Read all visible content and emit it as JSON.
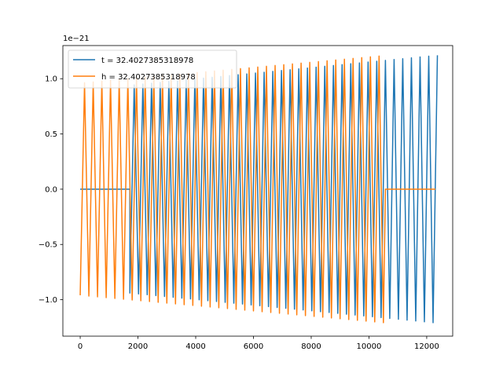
{
  "chart_data": {
    "type": "line",
    "title": "",
    "xlabel": "",
    "ylabel": "",
    "offset_label": "1e−21",
    "xlim": [
      -600,
      12900
    ],
    "ylim": [
      -1.33,
      1.3
    ],
    "x_ticks": [
      0,
      2000,
      4000,
      6000,
      8000,
      10000,
      12000
    ],
    "x_tick_labels": [
      "0",
      "2000",
      "4000",
      "6000",
      "8000",
      "10000",
      "12000"
    ],
    "y_ticks": [
      -1.0,
      -0.5,
      0.0,
      0.5,
      1.0
    ],
    "y_tick_labels": [
      "−1.0",
      "−0.5",
      "0.0",
      "0.5",
      "1.0"
    ],
    "grid": false,
    "legend_position": "top-left",
    "series": [
      {
        "name": "t = 32.4027385318978",
        "color": "#1f77b4",
        "zero_x_start": 0,
        "zero_x_end": 1720,
        "osc_x_start": 1720,
        "osc_x_end": 12300,
        "amp_start": 0.94,
        "amp_end": 1.21,
        "period": 150
      },
      {
        "name": "h = 32.4027385318978",
        "color": "#ff7f0e",
        "zero_x_start": 10570,
        "zero_x_end": 12300,
        "osc_x_start": 0,
        "osc_x_end": 10570,
        "amp_start": 0.96,
        "amp_end": 1.21,
        "period": 150
      }
    ]
  }
}
